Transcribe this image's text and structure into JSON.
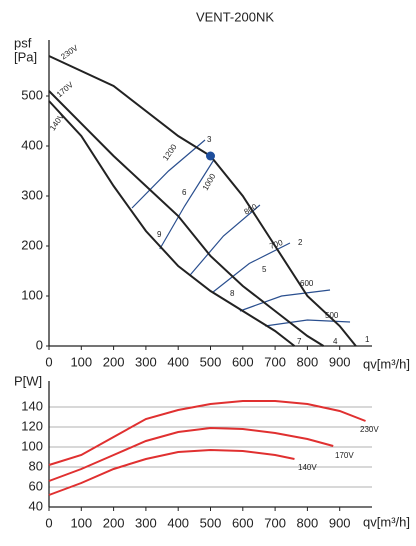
{
  "chart_data": [
    {
      "type": "line",
      "title": "VENT-200NK",
      "y_label": "psf",
      "y_unit": "[Pa]",
      "x_label": "qv[m³/h]",
      "xlim": [
        0,
        1000
      ],
      "xticks": [
        0,
        100,
        200,
        300,
        400,
        500,
        600,
        700,
        800,
        900
      ],
      "ylim": [
        0,
        600
      ],
      "yticks": [
        0,
        100,
        200,
        300,
        400,
        500
      ],
      "grid": false,
      "axis_color": "#222",
      "series": [
        {
          "name": "230V",
          "color": "#222",
          "x": [
            0,
            200,
            400,
            500,
            600,
            700,
            800,
            900,
            950
          ],
          "values": [
            580,
            520,
            420,
            380,
            300,
            200,
            100,
            40,
            0
          ]
        },
        {
          "name": "170V",
          "color": "#222",
          "x": [
            0,
            200,
            300,
            400,
            500,
            600,
            700,
            800,
            850
          ],
          "values": [
            510,
            380,
            320,
            260,
            180,
            120,
            70,
            20,
            0
          ]
        },
        {
          "name": "140V",
          "color": "#222",
          "x": [
            0,
            100,
            200,
            300,
            400,
            500,
            600,
            700,
            760
          ],
          "values": [
            490,
            420,
            320,
            230,
            160,
            110,
            70,
            30,
            0
          ]
        }
      ],
      "system_curves": [
        {
          "name": "1200",
          "color": "#2a4f8f",
          "x": [
            257,
            370,
            483
          ],
          "values": [
            276,
            350,
            412
          ]
        },
        {
          "name": "1000",
          "color": "#2a4f8f",
          "x": [
            343,
            420,
            510
          ],
          "values": [
            194,
            280,
            372
          ]
        },
        {
          "name": "800",
          "color": "#2a4f8f",
          "x": [
            437,
            540,
            653
          ],
          "values": [
            142,
            220,
            282
          ]
        },
        {
          "name": "700",
          "color": "#2a4f8f",
          "x": [
            508,
            620,
            746
          ],
          "values": [
            108,
            165,
            206
          ]
        },
        {
          "name": "600",
          "color": "#2a4f8f",
          "x": [
            591,
            720,
            870
          ],
          "values": [
            70,
            100,
            112
          ]
        },
        {
          "name": "500",
          "color": "#2a4f8f",
          "x": [
            669,
            800,
            932
          ],
          "values": [
            40,
            52,
            48
          ]
        }
      ],
      "highlight": {
        "x": 500,
        "y": 380,
        "color": "#1f4e9c"
      },
      "point_labels": [
        "1",
        "2",
        "3",
        "4",
        "5",
        "6",
        "7",
        "8",
        "9"
      ]
    },
    {
      "type": "line",
      "y_label": "P[W]",
      "x_label": "qv[m³/h]",
      "label_color": "#e03030",
      "xlim": [
        0,
        1000
      ],
      "xticks": [
        0,
        100,
        200,
        300,
        400,
        500,
        600,
        700,
        800,
        900
      ],
      "ylim": [
        40,
        160
      ],
      "yticks": [
        40,
        60,
        80,
        100,
        120,
        140
      ],
      "grid": true,
      "axis_color": "#222",
      "series": [
        {
          "name": "230V",
          "color": "#e03030",
          "x": [
            0,
            100,
            200,
            300,
            400,
            500,
            600,
            700,
            800,
            900,
            980
          ],
          "values": [
            82,
            92,
            110,
            128,
            137,
            143,
            146,
            146,
            143,
            136,
            126
          ]
        },
        {
          "name": "170V",
          "color": "#e03030",
          "x": [
            0,
            100,
            200,
            300,
            400,
            500,
            600,
            700,
            800,
            880
          ],
          "values": [
            66,
            78,
            92,
            106,
            115,
            119,
            118,
            114,
            108,
            101
          ]
        },
        {
          "name": "140V",
          "color": "#e03030",
          "x": [
            0,
            100,
            200,
            300,
            400,
            500,
            600,
            700,
            760
          ],
          "values": [
            52,
            64,
            78,
            88,
            95,
            97,
            96,
            92,
            88
          ]
        }
      ]
    }
  ]
}
